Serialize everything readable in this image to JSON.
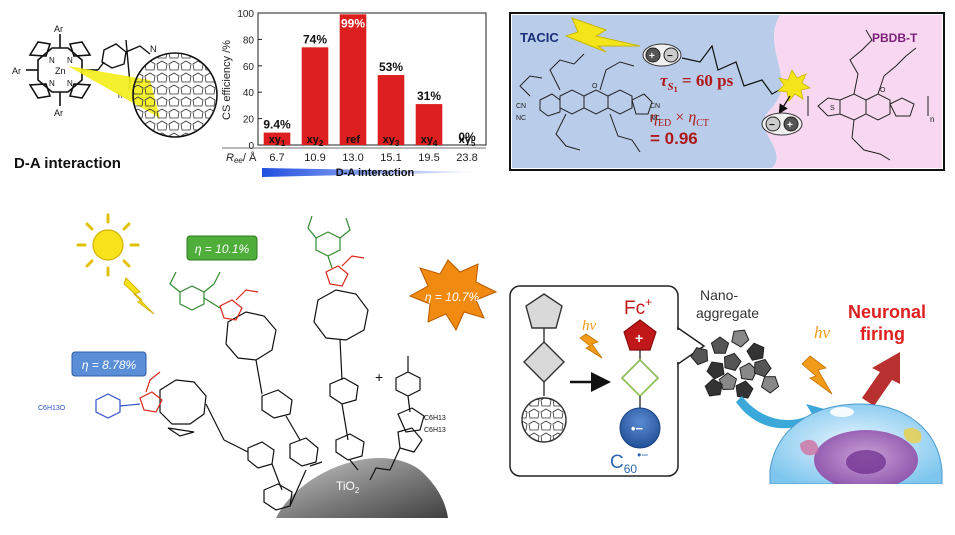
{
  "colors": {
    "bar_red": "#dd1f1f",
    "acceptor_panel": "#b9cdea",
    "donor_panel": "#f8d8f0",
    "eta_green": "#4fae3a",
    "eta_blue": "#5a8fd8",
    "eta_orange": "#f08a10",
    "fc_red": "#c01818",
    "c60_blue": "#2f66b0",
    "neuronal_red": "#e02020"
  },
  "panel_da": {
    "label": "D-A interaction",
    "atom_ar": "Ar",
    "atom_n": "N",
    "atom_zn": "Zn",
    "atom_n_sub": "n"
  },
  "chart_data": {
    "type": "bar",
    "ylabel": "CS efficiency /%",
    "ylim": [
      0,
      100
    ],
    "yticks": [
      "0",
      "20",
      "40",
      "60",
      "80",
      "100"
    ],
    "categories": [
      "xy1",
      "xy2",
      "ref",
      "xy3",
      "xy4",
      "xy5"
    ],
    "category_main": [
      "xy",
      "xy",
      "ref",
      "xy",
      "xy",
      "xy"
    ],
    "category_sub": [
      "1",
      "2",
      "",
      "3",
      "4",
      "5"
    ],
    "values": [
      9.4,
      74,
      99,
      53,
      31,
      0
    ],
    "value_labels": [
      "9.4%",
      "74%",
      "99%",
      "53%",
      "31%",
      "0%"
    ],
    "ree_label": "R",
    "ree_sub": "ee",
    "ree_unit": "/ Å",
    "ree_values": [
      "6.7",
      "10.9",
      "13.0",
      "15.1",
      "19.5",
      "23.8"
    ],
    "da_bar_label": "D-A interaction"
  },
  "panel_tacic": {
    "acceptor_label": "TACIC",
    "donor_label": "PBDB-T",
    "tau_symbol": "τ",
    "tau_sub": "S",
    "tau_sub2": "1",
    "tau_value": " = 60 ps",
    "eta_ed": "η",
    "eta_ed_sub": "ED",
    "times": " × ",
    "eta_ct": "η",
    "eta_ct_sub": "CT",
    "eta_value": "= 0.96",
    "plus": "+",
    "minus": "−",
    "atom_cn": "CN",
    "atom_nc": "NC",
    "atom_o": "O",
    "atom_s": "S",
    "atom_n_sub": "n"
  },
  "panel_dssc": {
    "eta_green": "η = 10.1%",
    "eta_blue": "η = 8.78%",
    "eta_orange": "η = 10.7%",
    "substrate": "TiO",
    "substrate_sub": "2",
    "plus": "+",
    "alkoxy": "C6H13O",
    "alkyl1": "C6H13",
    "alkyl2": "C6H13"
  },
  "panel_neuron": {
    "hv1": "hν",
    "hv2": "hν",
    "fc": "Fc",
    "fc_sup": "+",
    "plus": "+",
    "c60": "C",
    "c60_sub": "60",
    "c60_sup": "•−",
    "dot_minus": "•−",
    "nano_line1": "Nano-",
    "nano_line2": "aggregate",
    "neuronal_line1": "Neuronal",
    "neuronal_line2": "firing"
  }
}
